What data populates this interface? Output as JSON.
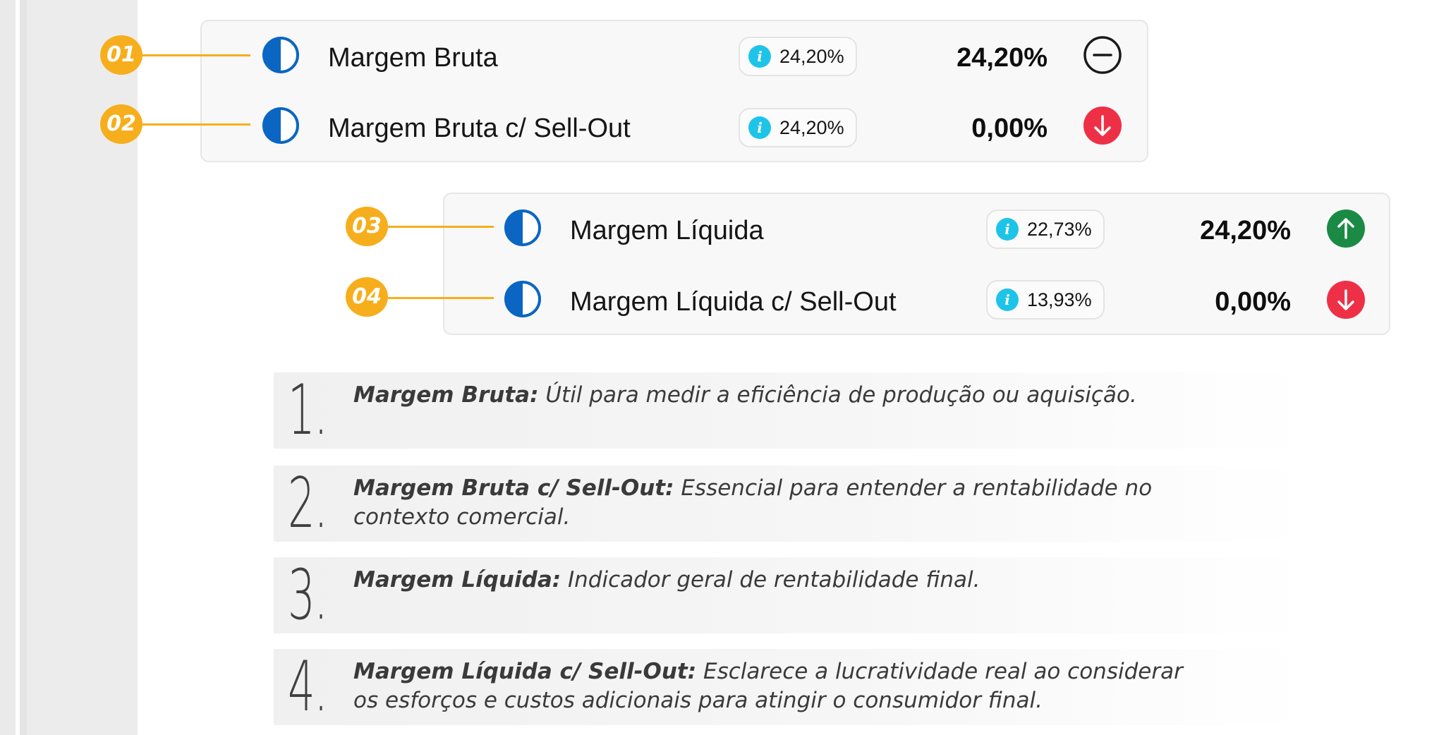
{
  "metrics": [
    {
      "marker": "01",
      "name": "Margem Bruta",
      "chip": "24,20%",
      "value": "24,20%",
      "status": "neutral",
      "status_color": "#1a1a1a"
    },
    {
      "marker": "02",
      "name": "Margem Bruta c/ Sell-Out",
      "chip": "24,20%",
      "value": "0,00%",
      "status": "down",
      "status_color": "#ee3047"
    },
    {
      "marker": "03",
      "name": "Margem Líquida",
      "chip": "22,73%",
      "value": "24,20%",
      "status": "up",
      "status_color": "#1a8a45"
    },
    {
      "marker": "04",
      "name": "Margem Líquida c/ Sell-Out",
      "chip": "13,93%",
      "value": "0,00%",
      "status": "down",
      "status_color": "#ee3047"
    }
  ],
  "notes": [
    {
      "num": "1.",
      "term": "Margem Bruta:",
      "desc": " Útil para medir a eficiência de produção ou aquisição."
    },
    {
      "num": "2.",
      "term": "Margem Bruta c/ Sell-Out:",
      "desc": " Essencial para entender a rentabilidade no contexto comercial."
    },
    {
      "num": "3.",
      "term": "Margem Líquida:",
      "desc": " Indicador geral de rentabilidade final."
    },
    {
      "num": "4.",
      "term": "Margem Líquida c/ Sell-Out:",
      "desc": " Esclarece a lucratividade real ao considerar os esforços e custos adicionais para atingir o consumidor final."
    }
  ],
  "colors": {
    "marker": "#f6ae1c",
    "half_icon": "#0a66c2",
    "info": "#1ec4e8",
    "up": "#1a8a45",
    "down": "#ee3047"
  },
  "icons": {
    "metric": "half-circle-icon",
    "chip": "info-icon",
    "neutral": "minus-circle-icon",
    "down": "arrow-down-circle-icon",
    "up": "arrow-up-circle-icon"
  }
}
